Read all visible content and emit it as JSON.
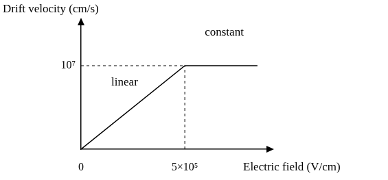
{
  "chart_data": {
    "type": "line",
    "x_label": "Electric field (V/cm)",
    "y_label": "Drift velocity (cm/s)",
    "x": [
      0,
      500000,
      850000
    ],
    "values": [
      0,
      10000000,
      10000000
    ],
    "color": "#000000",
    "xlim": [
      0,
      900000
    ],
    "ylim": [
      0,
      15000000
    ],
    "xticks": [
      0,
      {
        "value": 500000,
        "label": "5×10⁵"
      }
    ],
    "yticks": [
      {
        "value": 10000000,
        "label": "10⁷"
      }
    ],
    "annotations": [
      {
        "text": "linear",
        "x": 210000,
        "y": 8000000
      },
      {
        "text": "constant",
        "x": 690000,
        "y": 14000000
      }
    ],
    "grid": false
  }
}
